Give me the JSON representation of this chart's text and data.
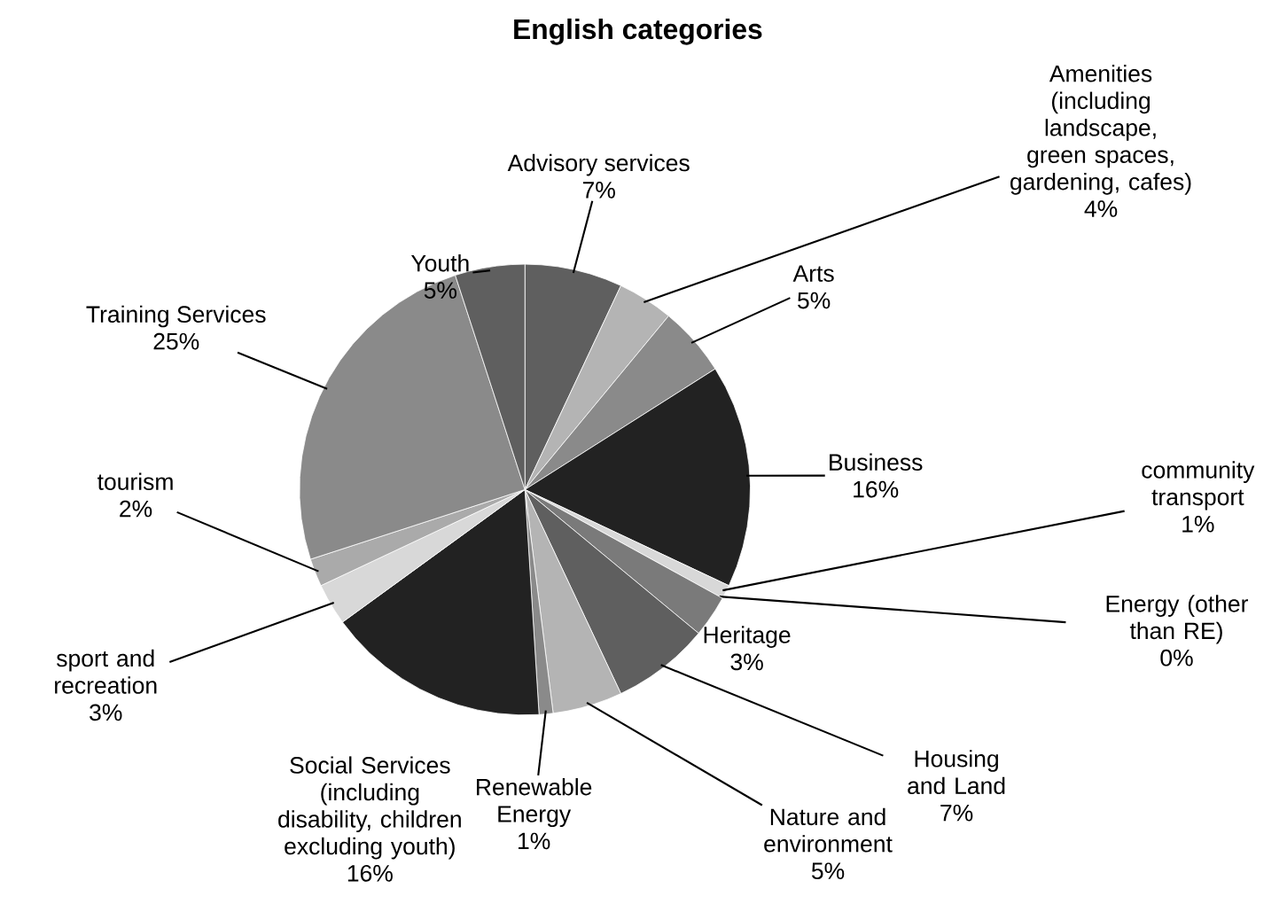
{
  "chart_data": {
    "type": "pie",
    "title": "English categories",
    "categories": [
      "Advisory services",
      "Amenities (including landscape, green spaces, gardening, cafes)",
      "Arts",
      "Business",
      "community transport",
      "Energy (other than RE)",
      "Heritage",
      "Housing and Land",
      "Nature and environment",
      "Renewable Energy",
      "Social Services (including disability, children excluding youth)",
      "sport and recreation",
      "tourism",
      "Training Services",
      "Youth"
    ],
    "values": [
      7,
      4,
      5,
      16,
      1,
      0,
      3,
      7,
      5,
      1,
      16,
      3,
      2,
      25,
      5
    ],
    "value_labels": [
      "7%",
      "4%",
      "5%",
      "16%",
      "1%",
      "0%",
      "3%",
      "7%",
      "5%",
      "1%",
      "16%",
      "3%",
      "2%",
      "25%",
      "5%"
    ],
    "colors": [
      "#5f5f5f",
      "#b4b4b4",
      "#8a8a8a",
      "#222222",
      "#d8d8d8",
      "#aaaaaa",
      "#7a7a7a",
      "#5f5f5f",
      "#b4b4b4",
      "#8a8a8a",
      "#222222",
      "#d8d8d8",
      "#aaaaaa",
      "#8a8a8a",
      "#5f5f5f"
    ]
  }
}
